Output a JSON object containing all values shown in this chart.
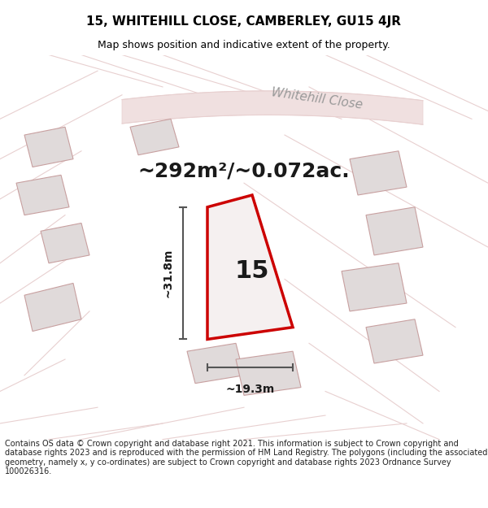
{
  "title": "15, WHITEHILL CLOSE, CAMBERLEY, GU15 4JR",
  "subtitle": "Map shows position and indicative extent of the property.",
  "area_text": "~292m²/~0.072ac.",
  "property_number": "15",
  "dim_width": "~19.3m",
  "dim_height": "~31.8m",
  "street_label": "Whitehill Close",
  "footer_text": "Contains OS data © Crown copyright and database right 2021. This information is subject to Crown copyright and database rights 2023 and is reproduced with the permission of HM Land Registry. The polygons (including the associated geometry, namely x, y co-ordinates) are subject to Crown copyright and database rights 2023 Ordnance Survey 100026316.",
  "bg_color": "#f5f0f0",
  "map_bg": "#f2eeee",
  "plot_outline_color": "#cc0000",
  "neighbor_fill": "#e0dada",
  "neighbor_outline": "#c8a0a0",
  "road_color": "#e8d0d0",
  "dim_line_color": "#555555",
  "title_fontsize": 11,
  "subtitle_fontsize": 9,
  "area_fontsize": 18,
  "number_fontsize": 22,
  "dim_fontsize": 10,
  "street_fontsize": 11,
  "footer_fontsize": 7
}
